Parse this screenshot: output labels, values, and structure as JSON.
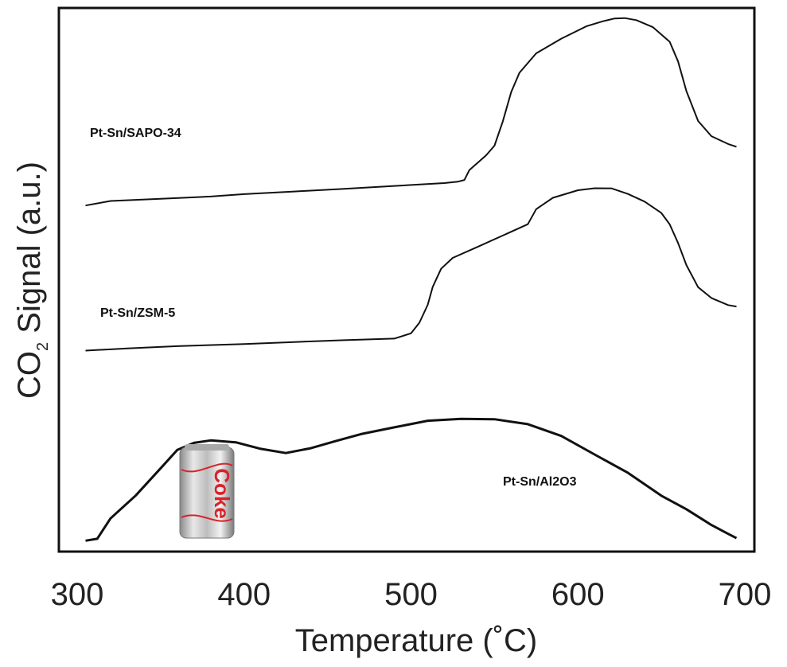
{
  "chart_data": {
    "type": "line",
    "xlabel": "Temperature (˚C)",
    "ylabel_main": "CO",
    "ylabel_sub": "2",
    "ylabel_rest": " Signal (a.u.)",
    "xlim": [
      300,
      700
    ],
    "xticks": [
      300,
      400,
      500,
      600,
      700
    ],
    "grid": false,
    "legend": "none",
    "series": [
      {
        "name": "Pt-Sn/SAPO-34",
        "color": "#111111",
        "x": [
          305,
          320,
          350,
          380,
          400,
          430,
          460,
          490,
          520,
          528,
          532,
          535,
          545,
          550,
          555,
          560,
          565,
          575,
          590,
          605,
          615,
          622,
          628,
          635,
          645,
          655,
          660,
          665,
          672,
          680,
          690,
          695
        ],
        "y": [
          0.39,
          0.4,
          0.405,
          0.41,
          0.415,
          0.42,
          0.425,
          0.43,
          0.435,
          0.437,
          0.44,
          0.46,
          0.49,
          0.51,
          0.56,
          0.62,
          0.66,
          0.7,
          0.73,
          0.755,
          0.765,
          0.77,
          0.77,
          0.765,
          0.75,
          0.72,
          0.68,
          0.62,
          0.56,
          0.53,
          0.515,
          0.51
        ]
      },
      {
        "name": "Pt-Sn/ZSM-5",
        "color": "#111111",
        "x": [
          305,
          330,
          360,
          400,
          430,
          460,
          490,
          500,
          505,
          510,
          513,
          518,
          525,
          540,
          555,
          570,
          575,
          585,
          600,
          610,
          620,
          630,
          640,
          650,
          655,
          660,
          665,
          672,
          680,
          690,
          695
        ],
        "y": [
          0.015,
          0.02,
          0.025,
          0.03,
          0.035,
          0.04,
          0.045,
          0.06,
          0.09,
          0.14,
          0.19,
          0.24,
          0.27,
          0.3,
          0.33,
          0.36,
          0.4,
          0.43,
          0.45,
          0.455,
          0.455,
          0.44,
          0.42,
          0.39,
          0.36,
          0.31,
          0.25,
          0.19,
          0.16,
          0.14,
          0.135
        ]
      },
      {
        "name": "Pt-Sn/Al2O3",
        "color": "#111111",
        "x": [
          305,
          312,
          320,
          335,
          350,
          360,
          370,
          380,
          395,
          410,
          425,
          440,
          455,
          470,
          490,
          510,
          530,
          550,
          570,
          590,
          610,
          630,
          650,
          665,
          680,
          690,
          695
        ],
        "y": [
          0.0,
          0.005,
          0.05,
          0.1,
          0.16,
          0.2,
          0.215,
          0.22,
          0.215,
          0.2,
          0.19,
          0.2,
          0.215,
          0.23,
          0.245,
          0.26,
          0.265,
          0.265,
          0.255,
          0.23,
          0.19,
          0.15,
          0.1,
          0.07,
          0.035,
          0.015,
          0.005
        ]
      }
    ],
    "annotations": {
      "sapo_label": "Pt-Sn/SAPO-34",
      "zsm_label": "Pt-Sn/ZSM-5",
      "al_label": "Pt-Sn/Al2O3",
      "can_brand": "Coke"
    }
  }
}
